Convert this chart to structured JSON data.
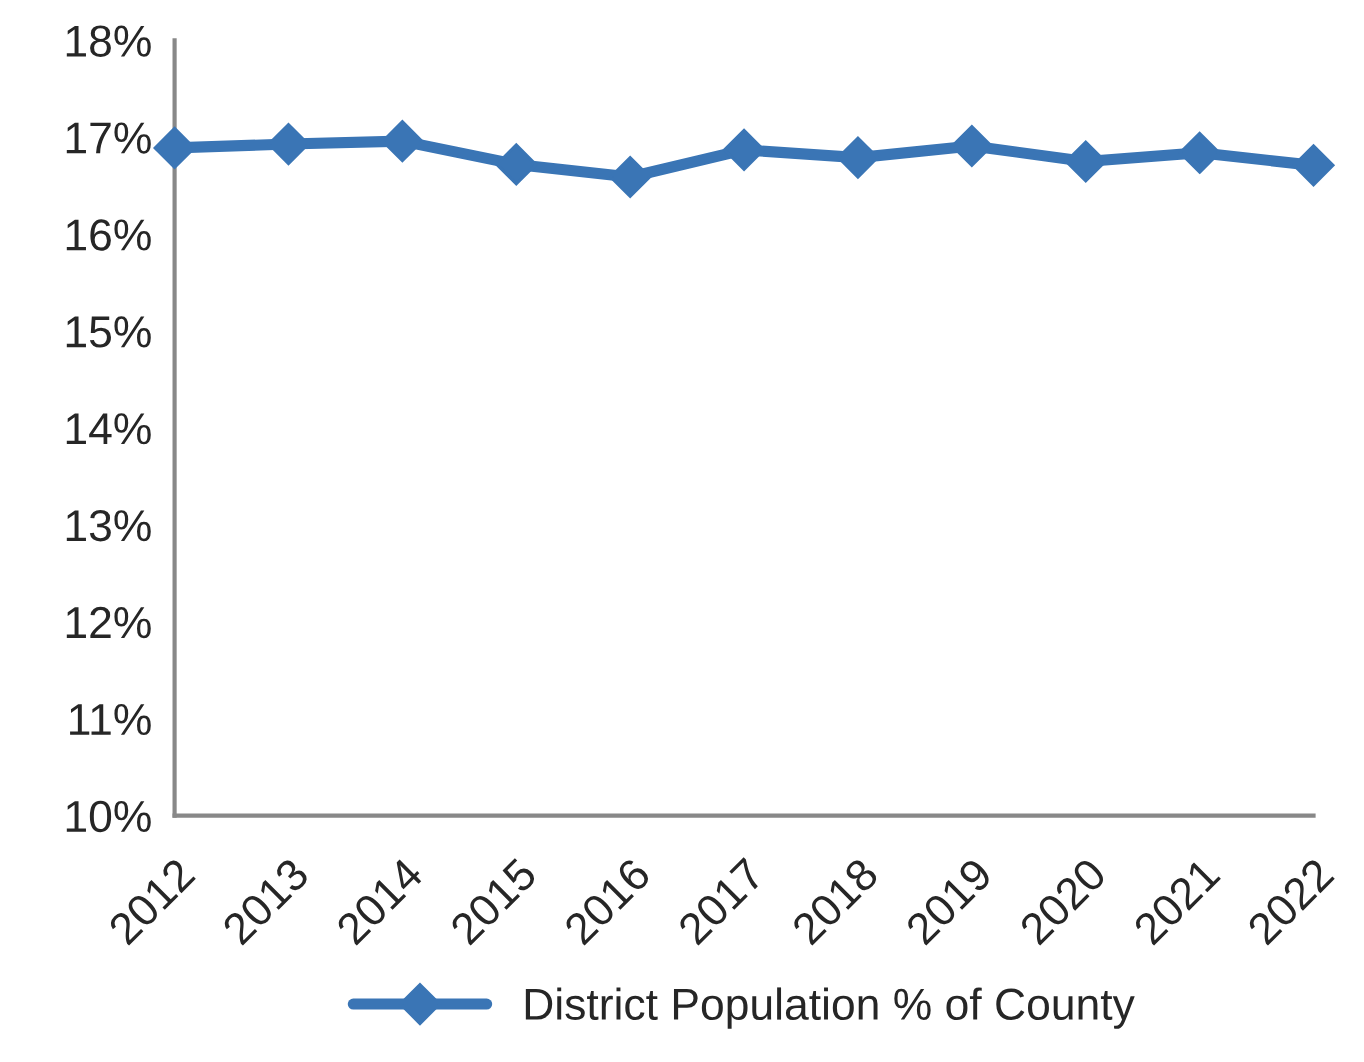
{
  "chart_data": {
    "type": "line",
    "categories": [
      "2012",
      "2013",
      "2014",
      "2015",
      "2016",
      "2017",
      "2018",
      "2019",
      "2020",
      "2021",
      "2022"
    ],
    "series": [
      {
        "name": "District Population % of County",
        "color": "#3a75b5",
        "values": [
          16.89,
          16.93,
          16.96,
          16.72,
          16.59,
          16.87,
          16.79,
          16.91,
          16.75,
          16.84,
          16.71
        ]
      }
    ],
    "ylim": [
      10,
      18
    ],
    "yticks": [
      {
        "value": 10,
        "label": "10%"
      },
      {
        "value": 11,
        "label": "11%"
      },
      {
        "value": 12,
        "label": "12%"
      },
      {
        "value": 13,
        "label": "13%"
      },
      {
        "value": 14,
        "label": "14%"
      },
      {
        "value": 15,
        "label": "15%"
      },
      {
        "value": 16,
        "label": "16%"
      },
      {
        "value": 17,
        "label": "17%"
      },
      {
        "value": 18,
        "label": "18%"
      }
    ],
    "marker": "diamond",
    "line_style": "solid",
    "legend": "bottom",
    "grid": false
  }
}
